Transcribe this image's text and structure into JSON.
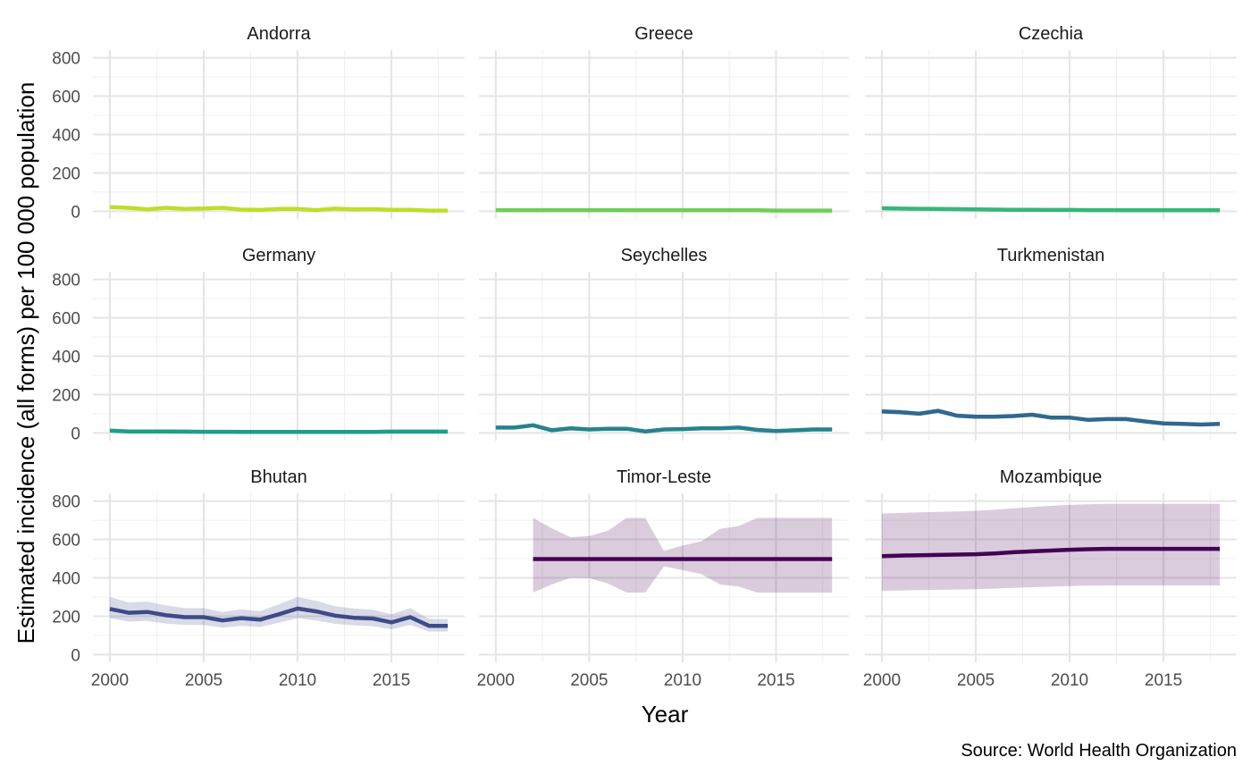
{
  "chart_data": {
    "type": "line",
    "xlabel": "Year",
    "ylabel": "Estimated incidence (all forms) per 100 000 population",
    "caption": "Source: World Health Organization",
    "xlim": [
      2000,
      2018
    ],
    "ylim": [
      0,
      800
    ],
    "x_ticks": [
      "2000",
      "2005",
      "2010",
      "2015"
    ],
    "y_ticks": [
      "0",
      "200",
      "400",
      "600",
      "800"
    ],
    "grid": true,
    "legend": "none",
    "panels": [
      {
        "name": "Andorra",
        "color": "#bddf26",
        "x": [
          2000,
          2001,
          2002,
          2003,
          2004,
          2005,
          2006,
          2007,
          2008,
          2009,
          2010,
          2011,
          2012,
          2013,
          2014,
          2015,
          2016,
          2017,
          2018
        ],
        "y": [
          22,
          18,
          10,
          18,
          12,
          15,
          18,
          9,
          7,
          12,
          12,
          6,
          14,
          10,
          11,
          8,
          8,
          4,
          4
        ],
        "lo": [
          18,
          14,
          7,
          14,
          9,
          12,
          14,
          7,
          5,
          9,
          9,
          4,
          11,
          8,
          8,
          6,
          6,
          3,
          3
        ],
        "hi": [
          26,
          22,
          13,
          22,
          15,
          18,
          22,
          11,
          9,
          15,
          15,
          8,
          17,
          12,
          14,
          10,
          10,
          5,
          5
        ]
      },
      {
        "name": "Greece",
        "color": "#6ece58",
        "x": [
          2000,
          2001,
          2002,
          2003,
          2004,
          2005,
          2006,
          2007,
          2008,
          2009,
          2010,
          2011,
          2012,
          2013,
          2014,
          2015,
          2016,
          2017,
          2018
        ],
        "y": [
          6,
          5,
          5,
          6,
          6,
          6,
          6,
          5,
          5,
          5,
          5,
          5,
          5,
          5,
          5,
          4,
          4,
          4,
          4
        ],
        "lo": [
          5,
          4,
          4,
          5,
          5,
          5,
          5,
          4,
          4,
          4,
          4,
          4,
          4,
          4,
          4,
          3,
          3,
          3,
          3
        ],
        "hi": [
          7,
          6,
          6,
          7,
          7,
          7,
          7,
          6,
          6,
          6,
          6,
          6,
          6,
          6,
          6,
          5,
          5,
          5,
          5
        ]
      },
      {
        "name": "Czechia",
        "color": "#35b779",
        "x": [
          2000,
          2001,
          2002,
          2003,
          2004,
          2005,
          2006,
          2007,
          2008,
          2009,
          2010,
          2011,
          2012,
          2013,
          2014,
          2015,
          2016,
          2017,
          2018
        ],
        "y": [
          16,
          14,
          13,
          12,
          11,
          10,
          9,
          8,
          8,
          7,
          7,
          6,
          6,
          5,
          5,
          5,
          5,
          5,
          5
        ],
        "lo": [
          14,
          12,
          11,
          10,
          9,
          8,
          8,
          7,
          7,
          6,
          6,
          5,
          5,
          4,
          4,
          4,
          4,
          4,
          4
        ],
        "hi": [
          18,
          16,
          15,
          14,
          13,
          12,
          10,
          9,
          9,
          8,
          8,
          7,
          7,
          6,
          6,
          6,
          6,
          6,
          6
        ]
      },
      {
        "name": "Germany",
        "color": "#1f9e89",
        "x": [
          2000,
          2001,
          2002,
          2003,
          2004,
          2005,
          2006,
          2007,
          2008,
          2009,
          2010,
          2011,
          2012,
          2013,
          2014,
          2015,
          2016,
          2017,
          2018
        ],
        "y": [
          12,
          8,
          8,
          8,
          7,
          6,
          6,
          5,
          5,
          5,
          5,
          5,
          5,
          5,
          5,
          7,
          7,
          7,
          7
        ],
        "lo": [
          10,
          7,
          7,
          7,
          6,
          5,
          5,
          4,
          4,
          4,
          4,
          4,
          4,
          4,
          4,
          6,
          6,
          6,
          6
        ],
        "hi": [
          14,
          9,
          9,
          9,
          8,
          7,
          7,
          6,
          6,
          6,
          6,
          6,
          6,
          6,
          6,
          8,
          8,
          8,
          8
        ]
      },
      {
        "name": "Seychelles",
        "color": "#26828e",
        "x": [
          2000,
          2001,
          2002,
          2003,
          2004,
          2005,
          2006,
          2007,
          2008,
          2009,
          2010,
          2011,
          2012,
          2013,
          2014,
          2015,
          2016,
          2017,
          2018
        ],
        "y": [
          28,
          28,
          40,
          14,
          24,
          18,
          22,
          22,
          8,
          18,
          20,
          24,
          24,
          28,
          16,
          10,
          14,
          18,
          18
        ],
        "lo": [
          24,
          24,
          34,
          12,
          20,
          15,
          19,
          19,
          6,
          15,
          17,
          20,
          20,
          24,
          13,
          8,
          12,
          15,
          15
        ],
        "hi": [
          32,
          32,
          46,
          16,
          28,
          21,
          25,
          25,
          10,
          21,
          23,
          28,
          28,
          32,
          19,
          12,
          16,
          21,
          21
        ]
      },
      {
        "name": "Turkmenistan",
        "color": "#31688e",
        "x": [
          2000,
          2001,
          2002,
          2003,
          2004,
          2005,
          2006,
          2007,
          2008,
          2009,
          2010,
          2011,
          2012,
          2013,
          2014,
          2015,
          2016,
          2017,
          2018
        ],
        "y": [
          112,
          108,
          100,
          115,
          90,
          85,
          85,
          88,
          95,
          80,
          80,
          68,
          72,
          72,
          60,
          50,
          47,
          44,
          47
        ],
        "lo": [
          100,
          96,
          89,
          102,
          80,
          75,
          75,
          78,
          84,
          71,
          71,
          60,
          63,
          63,
          53,
          44,
          41,
          38,
          41
        ],
        "hi": [
          126,
          121,
          112,
          128,
          101,
          95,
          95,
          98,
          106,
          90,
          90,
          76,
          81,
          81,
          68,
          57,
          53,
          50,
          53
        ]
      },
      {
        "name": "Bhutan",
        "color": "#3e4a89",
        "x": [
          2000,
          2001,
          2002,
          2003,
          2004,
          2005,
          2006,
          2007,
          2008,
          2009,
          2010,
          2011,
          2012,
          2013,
          2014,
          2015,
          2016,
          2017,
          2018
        ],
        "y": [
          238,
          218,
          222,
          205,
          195,
          195,
          178,
          190,
          182,
          210,
          240,
          225,
          203,
          192,
          188,
          168,
          195,
          150,
          150
        ],
        "lo": [
          190,
          172,
          176,
          162,
          154,
          154,
          140,
          150,
          144,
          166,
          190,
          178,
          160,
          152,
          148,
          132,
          154,
          120,
          120
        ],
        "hi": [
          300,
          272,
          276,
          256,
          242,
          242,
          222,
          236,
          226,
          262,
          300,
          280,
          252,
          240,
          234,
          210,
          242,
          186,
          186
        ]
      },
      {
        "name": "Timor-Leste",
        "color": "#440154",
        "x": [
          2002,
          2003,
          2004,
          2005,
          2006,
          2007,
          2008,
          2009,
          2010,
          2011,
          2012,
          2013,
          2014,
          2015,
          2016,
          2017,
          2018
        ],
        "y": [
          498,
          498,
          498,
          498,
          498,
          498,
          498,
          498,
          498,
          498,
          498,
          498,
          498,
          498,
          498,
          498,
          498
        ],
        "lo": [
          323,
          365,
          400,
          398,
          370,
          323,
          323,
          460,
          440,
          420,
          365,
          355,
          323,
          323,
          323,
          323,
          323
        ],
        "hi": [
          712,
          658,
          612,
          618,
          645,
          712,
          712,
          540,
          568,
          590,
          655,
          670,
          712,
          712,
          712,
          712,
          712
        ]
      },
      {
        "name": "Mozambique",
        "color": "#440154",
        "x": [
          2000,
          2001,
          2002,
          2003,
          2004,
          2005,
          2006,
          2007,
          2008,
          2009,
          2010,
          2011,
          2012,
          2013,
          2014,
          2015,
          2016,
          2017,
          2018
        ],
        "y": [
          513,
          516,
          518,
          519,
          521,
          523,
          527,
          533,
          538,
          542,
          546,
          549,
          551,
          551,
          551,
          551,
          551,
          551,
          551
        ],
        "lo": [
          333,
          334,
          336,
          337,
          339,
          341,
          344,
          348,
          351,
          354,
          357,
          359,
          360,
          360,
          360,
          360,
          360,
          360,
          360
        ],
        "hi": [
          735,
          738,
          741,
          743,
          746,
          749,
          755,
          762,
          769,
          775,
          780,
          783,
          785,
          785,
          785,
          785,
          785,
          785,
          785
        ]
      }
    ]
  }
}
